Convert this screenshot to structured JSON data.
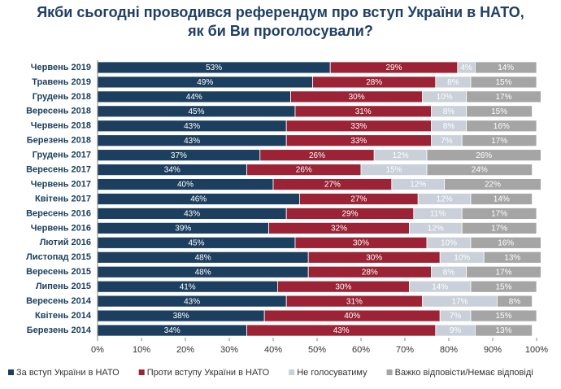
{
  "chart_data": {
    "type": "stacked-bar-horizontal",
    "title": [
      "Якби сьогодні проводився референдум про вступ України в НАТО,",
      "як би Ви проголосували?"
    ],
    "categories": [
      "Червень 2019",
      "Травень 2019",
      "Грудень 2018",
      "Вересень 2018",
      "Червень 2018",
      "Березень 2018",
      "Грудень 2017",
      "Вересень 2017",
      "Червень 2017",
      "Квітень 2017",
      "Вересень 2016",
      "Червень 2016",
      "Лютий 2016",
      "Листопад 2015",
      "Вересень 2015",
      "Липень 2015",
      "Вересень 2014",
      "Квітень 2014",
      "Березень 2014"
    ],
    "series": [
      {
        "name": "За вступ України в НАТО",
        "color": "#1c3f60",
        "values": [
          53,
          49,
          44,
          45,
          43,
          43,
          37,
          34,
          40,
          46,
          43,
          39,
          45,
          48,
          48,
          41,
          43,
          38,
          34
        ],
        "value_labels": [
          "53%",
          "49%",
          "44%",
          "45%",
          "43%",
          "43%",
          "37%",
          "34%",
          "40%",
          "46%",
          "43%",
          "39%",
          "45%",
          "48%",
          "48%",
          "41%",
          "43%",
          "38%",
          "34%"
        ]
      },
      {
        "name": "Проти вступу України в НАТО",
        "color": "#9b2335",
        "values": [
          29,
          28,
          30,
          31,
          33,
          33,
          26,
          26,
          27,
          27,
          29,
          32,
          30,
          30,
          28,
          30,
          31,
          40,
          43
        ],
        "value_labels": [
          "29%",
          "28%",
          "30%",
          "31%",
          "33%",
          "33%",
          "26%",
          "26%",
          "27%",
          "27%",
          "29%",
          "32%",
          "30%",
          "30%",
          "28%",
          "30%",
          "31%",
          "40%",
          "43%"
        ]
      },
      {
        "name": "Не голосуватиму",
        "color": "#c9d0d9",
        "values": [
          4,
          8,
          10,
          8,
          8,
          7,
          12,
          15,
          12,
          12,
          11,
          12,
          10,
          10,
          8,
          14,
          17,
          7,
          9
        ],
        "value_labels": [
          "4%",
          "8%",
          "10%",
          "8%",
          "8%",
          "7%",
          "12%",
          "15%",
          "12%",
          "12%",
          "11%",
          "12%",
          "10%",
          "10%",
          "8%",
          "14%",
          "17%",
          "7%",
          "9%"
        ]
      },
      {
        "name": "Важко відповісти/Немає відповіді",
        "color": "#a5a5a5",
        "values": [
          14,
          15,
          17,
          15,
          16,
          17,
          26,
          24,
          22,
          14,
          17,
          17,
          16,
          13,
          17,
          15,
          8,
          15,
          13
        ],
        "value_labels": [
          "14%",
          "15%",
          "17%",
          "15%",
          "16%",
          "17%",
          "26%",
          "24%",
          "22%",
          "14%",
          "17%",
          "17%",
          "16%",
          "13%",
          "17%",
          "15%",
          "8%",
          "15%",
          "13%"
        ]
      }
    ],
    "xlim": [
      0,
      100
    ],
    "xticks": [
      {
        "value": 0,
        "label": "0%"
      },
      {
        "value": 10,
        "label": "10%"
      },
      {
        "value": 20,
        "label": "20%"
      },
      {
        "value": 30,
        "label": "30%"
      },
      {
        "value": 40,
        "label": "40%"
      },
      {
        "value": 50,
        "label": "50%"
      },
      {
        "value": 60,
        "label": "60%"
      },
      {
        "value": 70,
        "label": "70%"
      },
      {
        "value": 80,
        "label": "80%"
      },
      {
        "value": 90,
        "label": "90%"
      },
      {
        "value": 100,
        "label": "100%"
      }
    ],
    "legend": "bottom"
  }
}
